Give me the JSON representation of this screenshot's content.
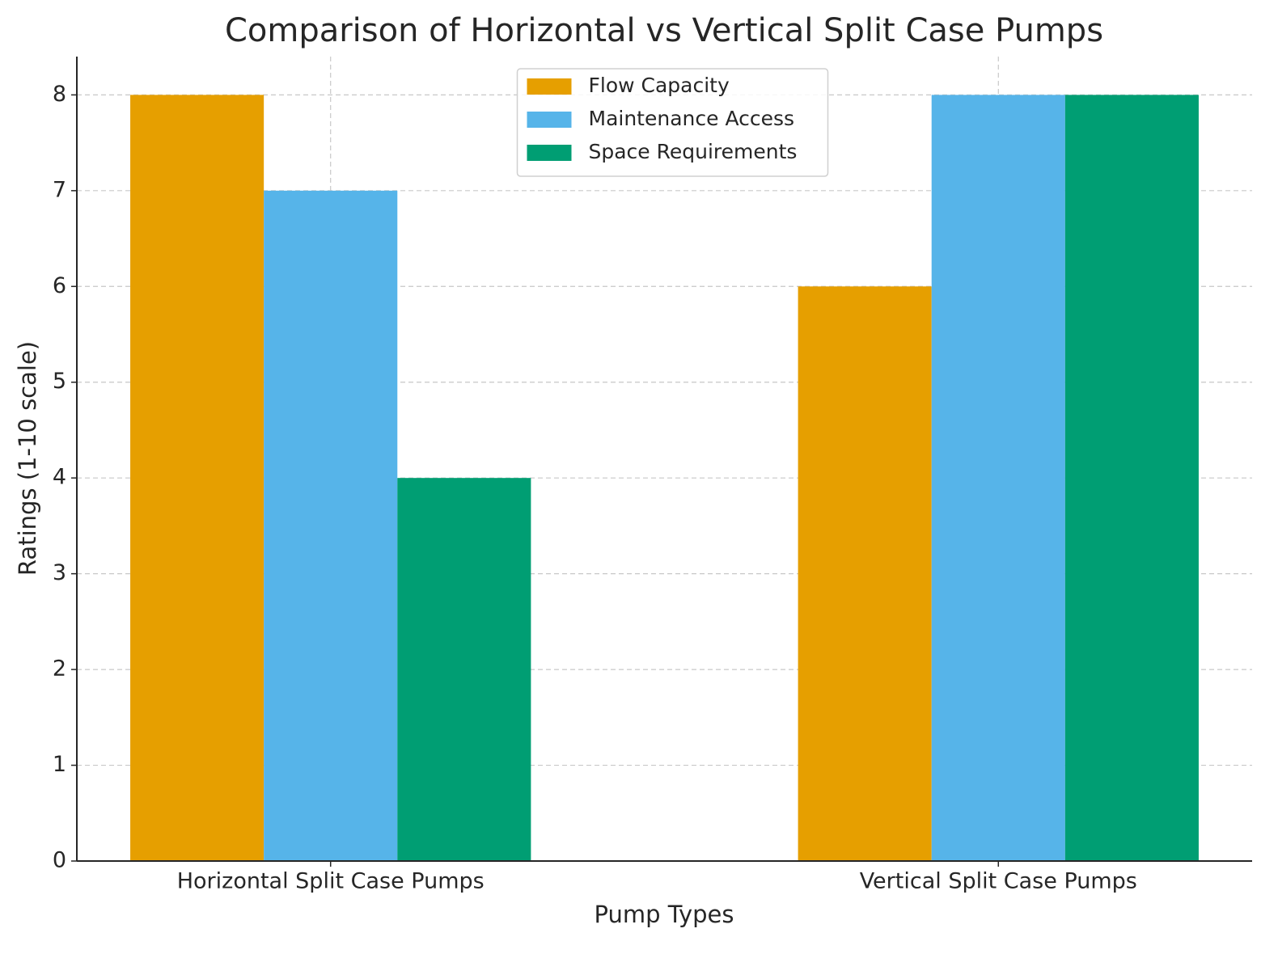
{
  "chart_data": {
    "type": "bar",
    "title": "Comparison of Horizontal vs Vertical Split Case Pumps",
    "x_label": "Pump Types",
    "y_label": "Ratings (1-10 scale)",
    "categories": [
      "Horizontal Split Case Pumps",
      "Vertical Split Case Pumps"
    ],
    "series": [
      {
        "name": "Flow Capacity",
        "color": "#e69f00",
        "values": [
          8,
          6
        ]
      },
      {
        "name": "Maintenance Access",
        "color": "#56b4e9",
        "values": [
          7,
          8
        ]
      },
      {
        "name": "Space Requirements",
        "color": "#009e73",
        "values": [
          4,
          8
        ]
      }
    ],
    "ylim": [
      0,
      8.4
    ],
    "yticks": [
      0,
      1,
      2,
      3,
      4,
      5,
      6,
      7,
      8
    ],
    "grid": true,
    "legend": "upper center"
  }
}
